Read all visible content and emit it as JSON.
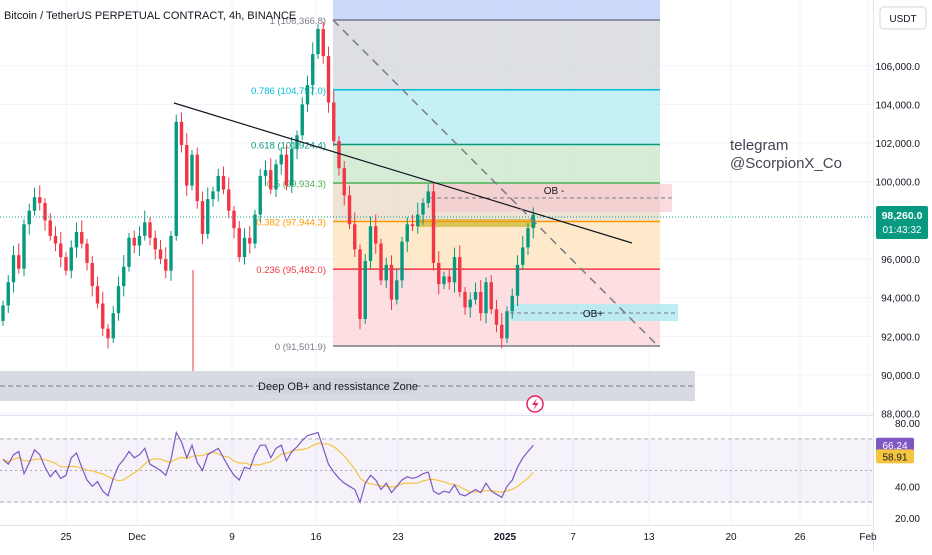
{
  "header": {
    "title": "Bitcoin / TetherUS PERPETUAL CONTRACT, 4h, BINANCE"
  },
  "currency_button": "USDT",
  "price_axis": {
    "ticks": [
      "106,000.0",
      "104,000.0",
      "102,000.0",
      "100,000.0",
      "96,000.0",
      "94,000.0",
      "92,000.0",
      "90,000.0",
      "88,000.0"
    ]
  },
  "last_price": {
    "value": "98,260.0",
    "countdown": "01:43:32",
    "color": "#089981"
  },
  "watermark": {
    "line1": "telegram",
    "line2": "@ScorpionX_Co"
  },
  "annotations": {
    "ob_minus": "OB -",
    "ob_plus": "OB+",
    "deep_zone": "Deep OB+ and ressistance Zone"
  },
  "chart_data": [
    {
      "type": "candlestick",
      "title": "Bitcoin / TetherUS PERPETUAL CONTRACT, 4h, BINANCE",
      "ylim": [
        87600,
        109200
      ],
      "x_ticks": [
        "25",
        "Dec",
        "9",
        "16",
        "23",
        "2025",
        "7",
        "13",
        "20",
        "26",
        "Feb"
      ],
      "fibonacci": [
        {
          "level": "1",
          "price": 108366.8,
          "label": "1 (108,366.8)",
          "color": "#787b86"
        },
        {
          "level": "0.786",
          "price": 104757.0,
          "label": "0.786 (104,757.0)",
          "color": "#00bcd4"
        },
        {
          "level": "0.618",
          "price": 101924.4,
          "label": "0.618 (101,924.4)",
          "color": "#089981"
        },
        {
          "level": "0.5",
          "price": 99934.3,
          "label": "0.5 (99,934.3)",
          "color": "#4caf50"
        },
        {
          "level": "0.382",
          "price": 97944.3,
          "label": "0.382 (97,944.3)",
          "color": "#ff9800"
        },
        {
          "level": "0.236",
          "price": 95482.0,
          "label": "0.236 (95,482.0)",
          "color": "#f23645"
        },
        {
          "level": "0",
          "price": 91501.9,
          "label": "0 (91,501.9)",
          "color": "#787b86"
        }
      ],
      "closes": [
        93600,
        94800,
        96200,
        95500,
        97800,
        98500,
        99200,
        98900,
        98000,
        97200,
        96800,
        96100,
        95400,
        96600,
        97400,
        96800,
        95800,
        94600,
        93700,
        92400,
        91900,
        93200,
        94600,
        95600,
        97100,
        96700,
        97200,
        97900,
        97100,
        96500,
        96000,
        95400,
        97200,
        103100,
        101900,
        99800,
        101400,
        99000,
        97300,
        99100,
        99500,
        100300,
        99600,
        98500,
        97600,
        96100,
        97100,
        96800,
        98300,
        100300,
        100600,
        99600,
        100900,
        101400,
        99800,
        101700,
        102400,
        104000,
        105000,
        106600,
        107900,
        106500,
        104100,
        102100,
        100700,
        99300,
        97800,
        96500,
        92900,
        95900,
        97700,
        96800,
        94900,
        95700,
        93900,
        94900,
        96900,
        97800,
        97700,
        98300,
        98900,
        99500,
        95800,
        94700,
        95100,
        94800,
        96100,
        94300,
        93500,
        93900,
        94300,
        93200,
        94800,
        93400,
        92600,
        91900,
        93300,
        94100,
        95700,
        96600,
        97600,
        98300
      ],
      "rsi": {
        "color": "#7e57c2",
        "ma_color": "#f5c542",
        "value": 66.24,
        "ma_value": 58.91,
        "ylim": [
          20,
          80
        ],
        "ticks": [
          "80.00",
          "40.00",
          "20.00"
        ],
        "bands": [
          70,
          50,
          30
        ],
        "values": [
          57,
          54,
          60,
          62,
          48,
          55,
          63,
          60,
          52,
          46,
          50,
          45,
          47,
          58,
          61,
          52,
          44,
          40,
          43,
          37,
          34,
          45,
          53,
          57,
          62,
          58,
          60,
          64,
          54,
          52,
          50,
          47,
          57,
          74,
          68,
          58,
          66,
          55,
          50,
          60,
          62,
          64,
          58,
          52,
          47,
          44,
          52,
          51,
          60,
          66,
          66,
          58,
          64,
          66,
          56,
          62,
          65,
          69,
          72,
          73,
          74,
          64,
          54,
          49,
          45,
          42,
          40,
          38,
          30,
          42,
          47,
          44,
          38,
          42,
          36,
          40,
          44,
          46,
          45,
          46,
          48,
          49,
          37,
          35,
          37,
          36,
          41,
          35,
          34,
          36,
          38,
          36,
          42,
          37,
          35,
          33,
          40,
          44,
          52,
          58,
          62,
          66
        ]
      }
    }
  ]
}
